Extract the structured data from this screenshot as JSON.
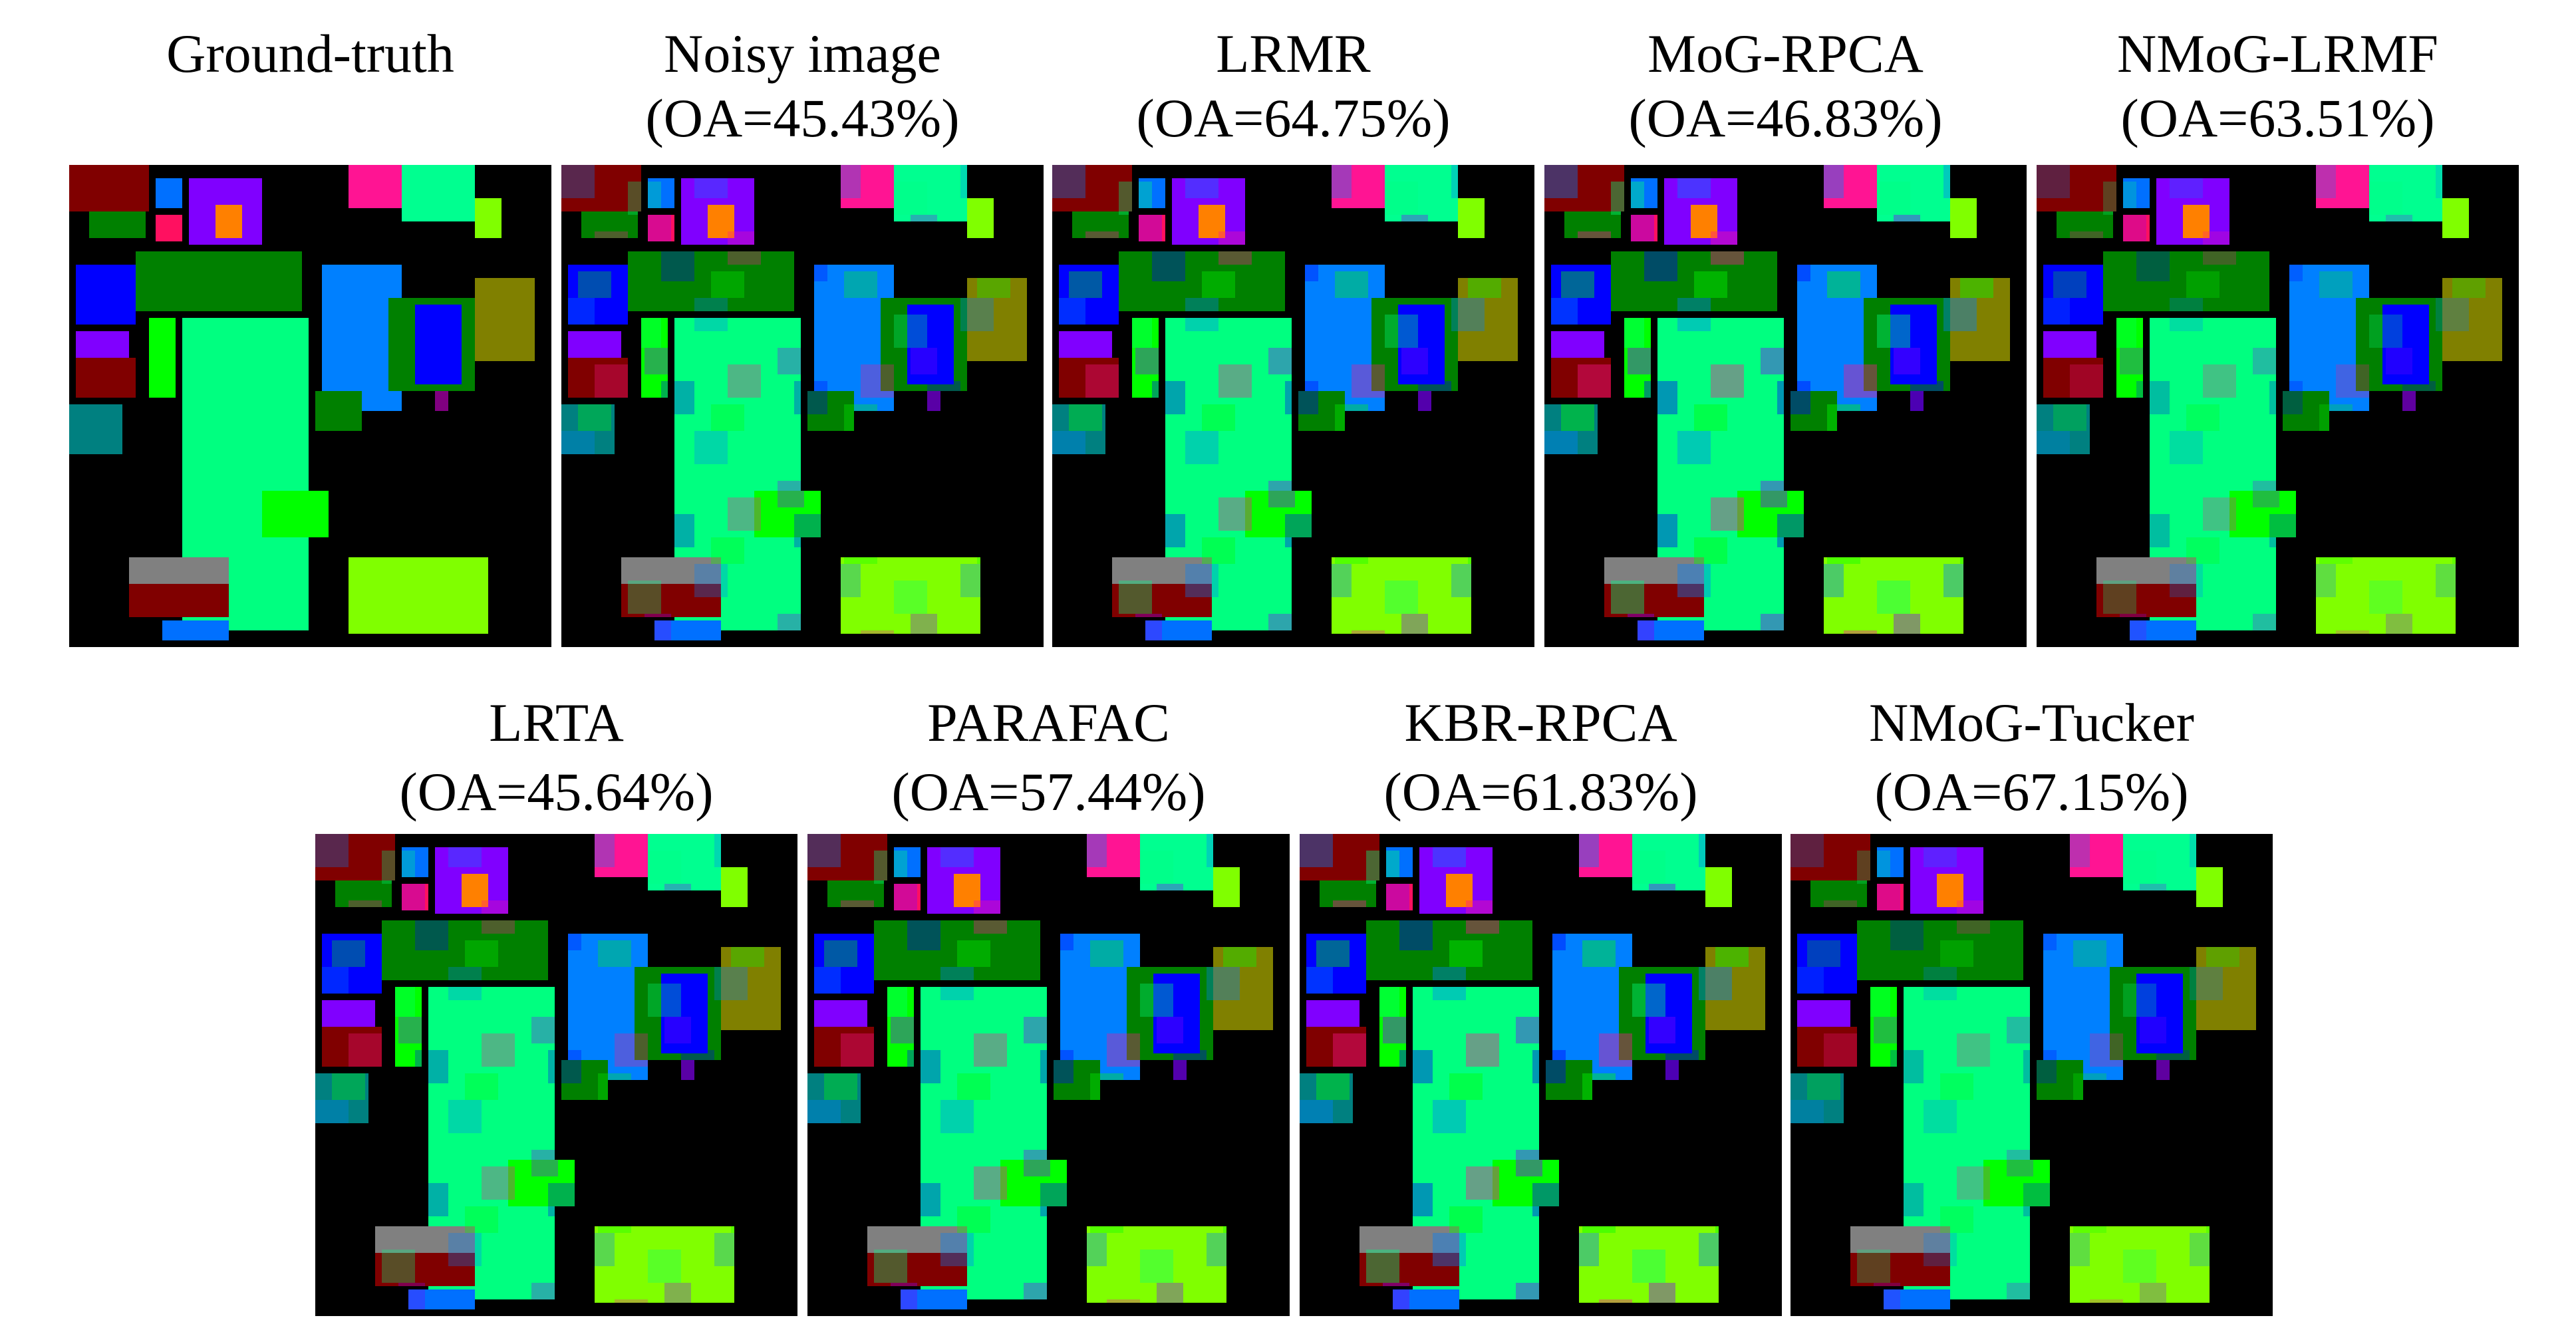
{
  "panels": [
    {
      "title": "Ground-truth"
    },
    {
      "title": "Noisy image",
      "caption": "(OA=45.43%)"
    },
    {
      "title": "LRMR",
      "caption": "(OA=64.75%)"
    },
    {
      "title": "MoG-RPCA",
      "caption": "(OA=46.83%)"
    },
    {
      "title": "NMoG-LRMF",
      "caption": "(OA=63.51%)"
    },
    {
      "title": "LRTA",
      "caption": "(OA=45.64%)"
    },
    {
      "title": "PARAFAC",
      "caption": "(OA=57.44%)"
    },
    {
      "title": "KBR-RPCA",
      "caption": "(OA=61.83%)"
    },
    {
      "title": "NMoG-Tucker",
      "caption": "(OA=67.15%)"
    }
  ]
}
